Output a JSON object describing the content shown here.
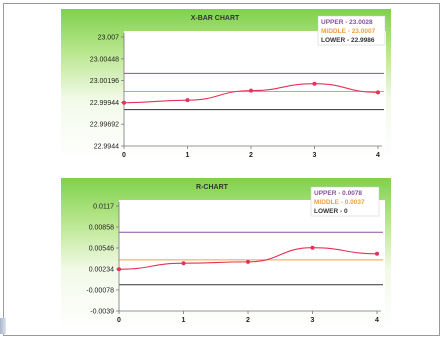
{
  "chart_data": [
    {
      "type": "line",
      "title": "X-BAR CHART",
      "x": [
        0,
        1,
        2,
        3,
        4
      ],
      "xticks": [
        "0",
        "1",
        "2",
        "3",
        "4"
      ],
      "yticks": [
        "23.007",
        "23.00448",
        "23.00196",
        "22.99944",
        "22.99692",
        "22.9944"
      ],
      "ylim": [
        22.9944,
        23.007
      ],
      "series": [
        {
          "values": [
            22.9994,
            22.9997,
            23.0008,
            23.0016,
            23.0006
          ],
          "color": "#e8305a"
        }
      ],
      "limits": [
        {
          "label": "UPPER - 23.0028",
          "value": 23.0028,
          "color": "#8a50a0"
        },
        {
          "label": "MIDDLE - 23.0007",
          "value": 23.0007,
          "color": "#f0a040"
        },
        {
          "label": "LOWER - 22.9986",
          "value": 22.9986,
          "color": "#333333"
        }
      ],
      "grid": false,
      "legend": "top-right"
    },
    {
      "type": "line",
      "title": "R-CHART",
      "x": [
        0,
        1,
        2,
        3,
        4
      ],
      "xticks": [
        "0",
        "1",
        "2",
        "3",
        "4"
      ],
      "yticks": [
        "0.0117",
        "0.00858",
        "0.00546",
        "0.00234",
        "-0.00078",
        "-0.0039"
      ],
      "ylim": [
        -0.0039,
        0.0117
      ],
      "series": [
        {
          "values": [
            0.0023,
            0.0032,
            0.0034,
            0.0055,
            0.0046
          ],
          "color": "#e8305a"
        }
      ],
      "limits": [
        {
          "label": "UPPER - 0.0078",
          "value": 0.0078,
          "color": "#8a50a0"
        },
        {
          "label": "MIDDLE - 0.0037",
          "value": 0.0037,
          "color": "#f0a040"
        },
        {
          "label": "LOWER - 0",
          "value": 0,
          "color": "#333333"
        }
      ],
      "grid": false,
      "legend": "top-right"
    }
  ]
}
